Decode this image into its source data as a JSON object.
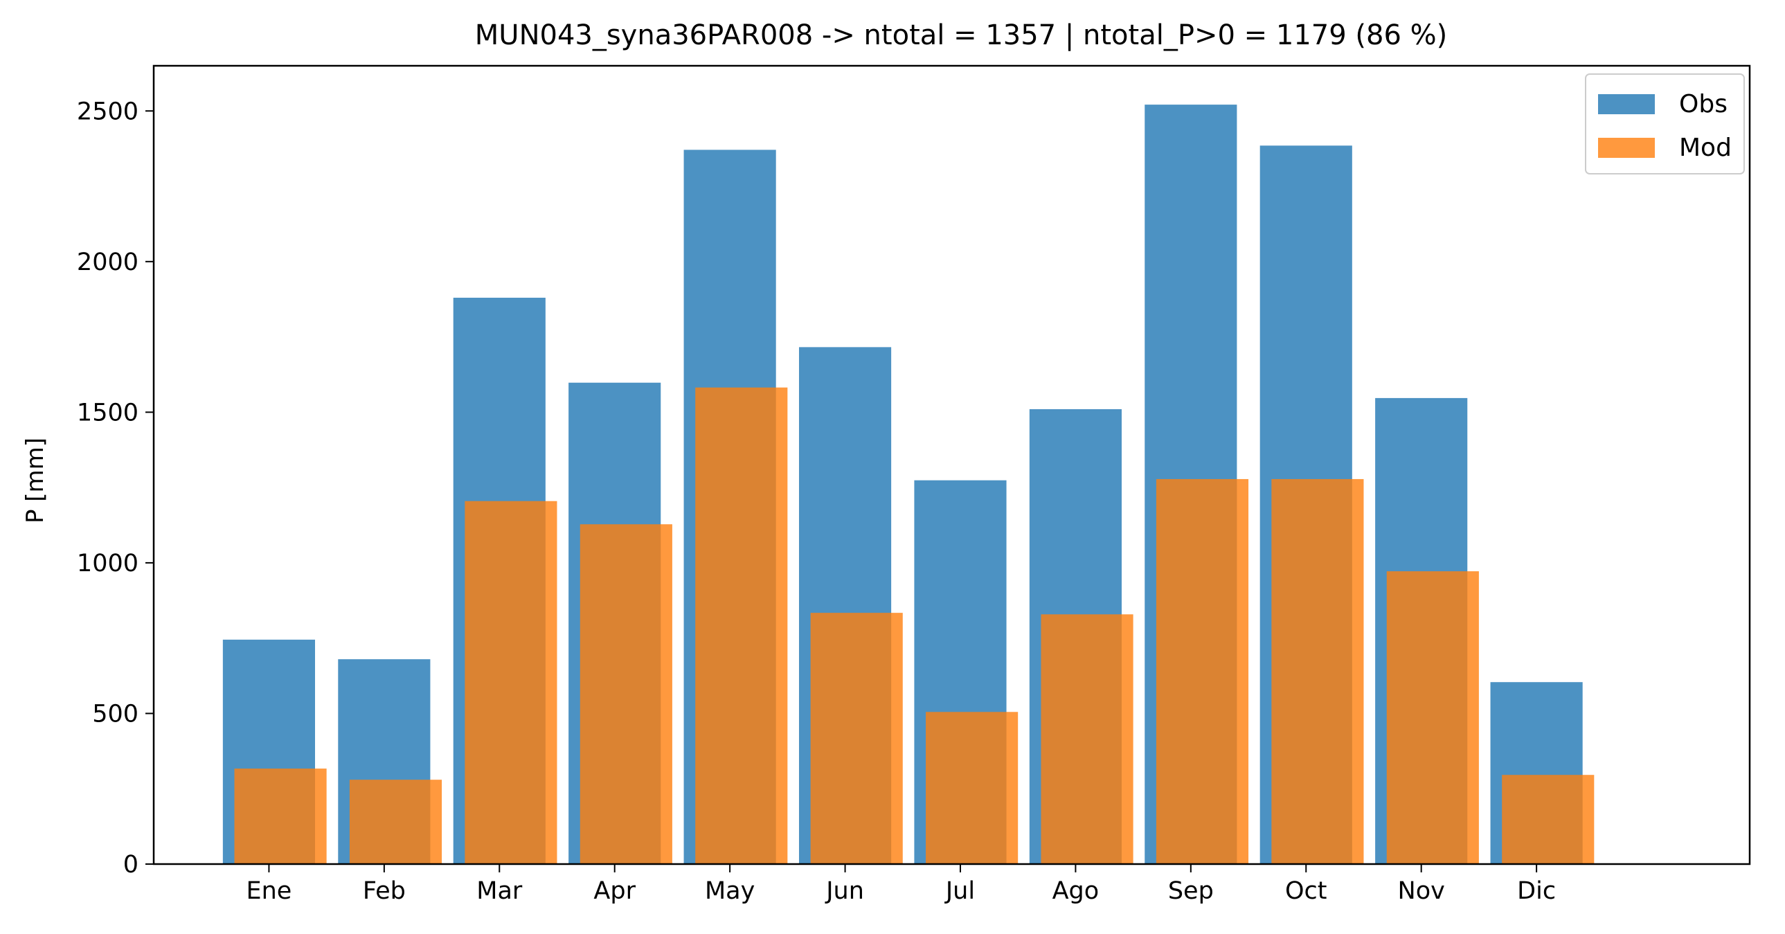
{
  "chart_data": {
    "type": "bar",
    "title": "MUN043_syna36PAR008 -> ntotal = 1357 | ntotal_P>0 = 1179 (86 %)",
    "xlabel": "",
    "ylabel": "P [mm]",
    "categories": [
      "Ene",
      "Feb",
      "Mar",
      "Apr",
      "May",
      "Jun",
      "Jul",
      "Ago",
      "Sep",
      "Oct",
      "Nov",
      "Dic"
    ],
    "series": [
      {
        "name": "Obs",
        "color": "#1f77b4",
        "values": [
          745,
          680,
          1880,
          1598,
          2371,
          1716,
          1274,
          1510,
          2521,
          2385,
          1547,
          604
        ]
      },
      {
        "name": "Mod",
        "color": "#ff7f0e",
        "values": [
          317,
          280,
          1205,
          1128,
          1582,
          834,
          505,
          829,
          1278,
          1278,
          972,
          296
        ]
      }
    ],
    "ylim": [
      0,
      2650
    ],
    "yticks": [
      0,
      500,
      1000,
      1500,
      2000,
      2500
    ],
    "grid": false,
    "legend_position": "top-right"
  }
}
